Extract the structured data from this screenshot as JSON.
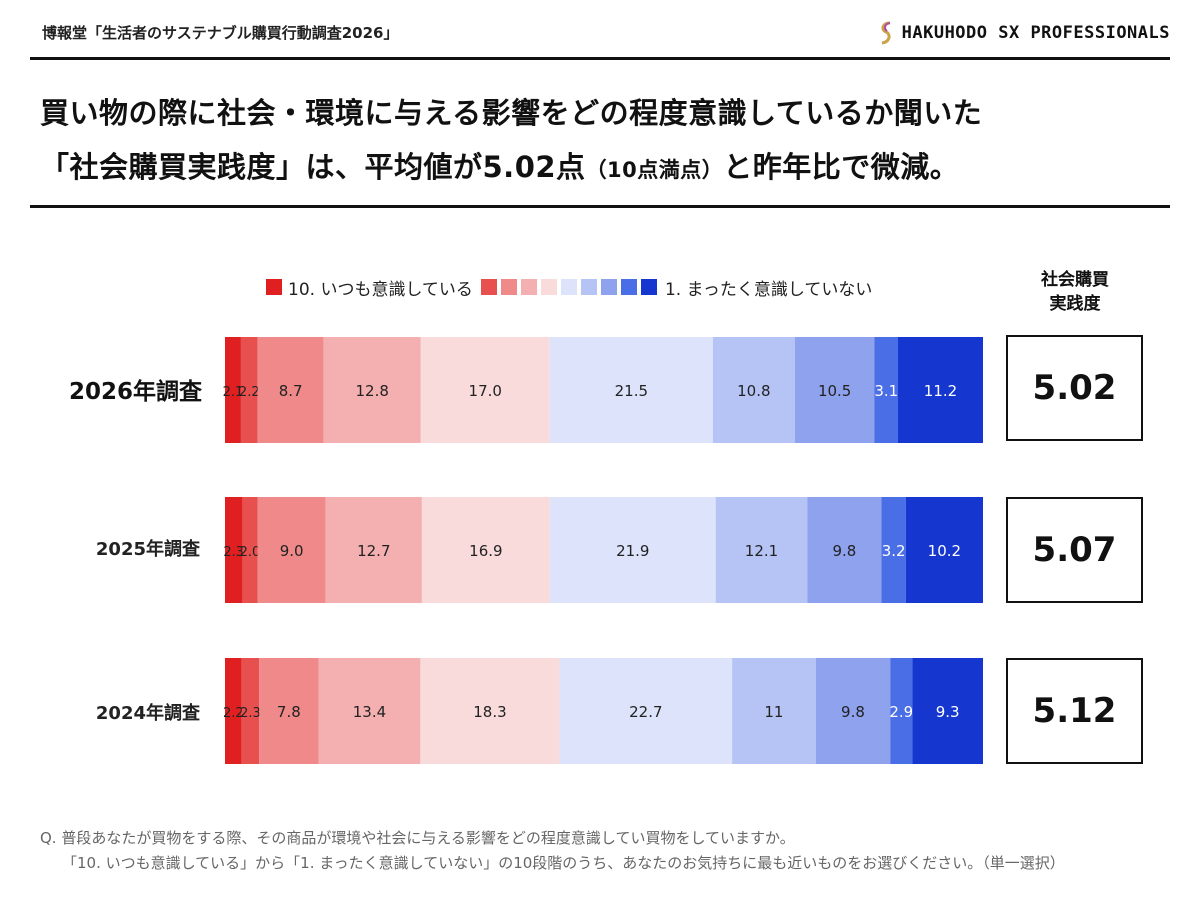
{
  "header": {
    "source": "博報堂「生活者のサステナブル購買行動調査2026」",
    "brand": "HAKUHODO SX PROFESSIONALS"
  },
  "headline": {
    "line1": "買い物の際に社会・環境に与える影響をどの程度意識しているか聞いた",
    "line2_main": "「社会購買実践度」は、平均値が5.02点",
    "line2_paren": "（10点満点）",
    "line2_tail": "と昨年比で微減。"
  },
  "legend": {
    "left_label": "10. いつも意識している",
    "right_label": "1. まったく意識していない"
  },
  "score_header": [
    "社会購買",
    "実践度"
  ],
  "colors": {
    "scale": [
      "#e02020",
      "#e85050",
      "#f08a8a",
      "#f4b0b0",
      "#fadbdb",
      "#dde3fa",
      "#b6c3f5",
      "#8ea2ee",
      "#4a6ee6",
      "#1537d0"
    ]
  },
  "chart_data": {
    "type": "bar",
    "orientation": "horizontal",
    "stacked": true,
    "normalized": true,
    "categories": [
      "2026年調査",
      "2025年調査",
      "2024年調査"
    ],
    "series": [
      {
        "name": "10. いつも意識している",
        "values": [
          2.1,
          2.3,
          2.2
        ]
      },
      {
        "name": "9",
        "values": [
          2.2,
          2.0,
          2.3
        ]
      },
      {
        "name": "8",
        "values": [
          8.7,
          9.0,
          7.8
        ]
      },
      {
        "name": "7",
        "values": [
          12.8,
          12.7,
          13.4
        ]
      },
      {
        "name": "6",
        "values": [
          17.0,
          16.9,
          18.3
        ]
      },
      {
        "name": "5",
        "values": [
          21.5,
          21.9,
          22.7
        ]
      },
      {
        "name": "4",
        "values": [
          10.8,
          12.1,
          11
        ]
      },
      {
        "name": "3",
        "values": [
          10.5,
          9.8,
          9.8
        ]
      },
      {
        "name": "2",
        "values": [
          3.1,
          3.2,
          2.9
        ]
      },
      {
        "name": "1. まったく意識していない",
        "values": [
          11.2,
          10.2,
          9.3
        ]
      }
    ],
    "value_labels": [
      [
        "2.1",
        "2.2",
        "8.7",
        "12.8",
        "17.0",
        "21.5",
        "10.8",
        "10.5",
        "3.1",
        "11.2"
      ],
      [
        "2.3",
        "2.0",
        "9.0",
        "12.7",
        "16.9",
        "21.9",
        "12.1",
        "9.8",
        "3.2",
        "10.2"
      ],
      [
        "2.2",
        "2.3",
        "7.8",
        "13.4",
        "18.3",
        "22.7",
        "11",
        "9.8",
        "2.9",
        "9.3"
      ]
    ],
    "scores": [
      "5.02",
      "5.07",
      "5.12"
    ]
  },
  "footnote": {
    "line1": "Q. 普段あなたが買物をする際、その商品が環境や社会に与える影響をどの程度意識してい買物をしていますか。",
    "line2": "「10. いつも意識している」から「1. まったく意識していない」の10段階のうち、あなたのお気持ちに最も近いものをお選びください。（単一選択）"
  }
}
